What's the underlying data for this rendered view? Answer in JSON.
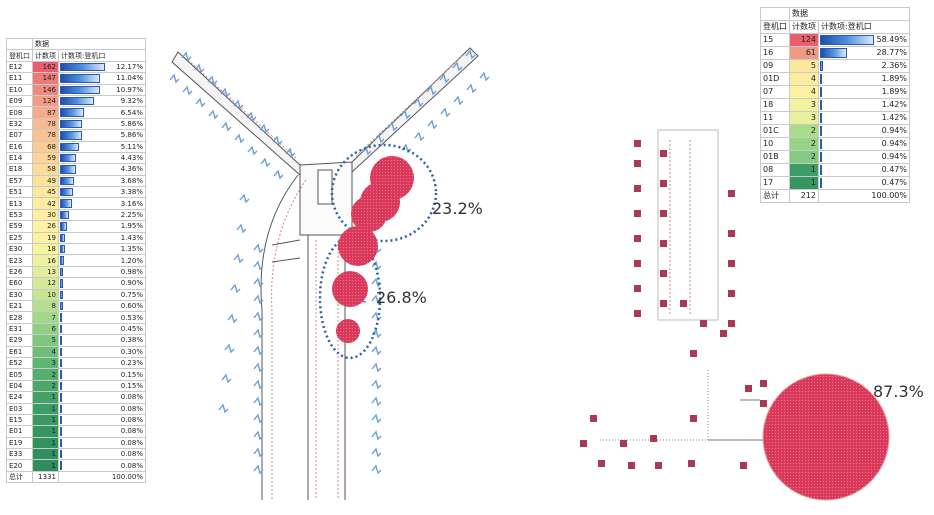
{
  "left_table": {
    "header_top": "数据",
    "col_gate": "登机口",
    "col_count": "计数项",
    "col_pct": "计数项:登机口",
    "rows": [
      {
        "gate": "E12",
        "count": "162",
        "pct": "12.17%",
        "frac": 0.52,
        "color": "#e8606d"
      },
      {
        "gate": "E11",
        "count": "147",
        "pct": "11.04%",
        "frac": 0.47,
        "color": "#ec7a78"
      },
      {
        "gate": "E10",
        "count": "146",
        "pct": "10.97%",
        "frac": 0.47,
        "color": "#ef8a7f"
      },
      {
        "gate": "E09",
        "count": "124",
        "pct": "9.32%",
        "frac": 0.4,
        "color": "#f39b86"
      },
      {
        "gate": "E08",
        "count": "87",
        "pct": "6.54%",
        "frac": 0.28,
        "color": "#f5ab8a"
      },
      {
        "gate": "E32",
        "count": "78",
        "pct": "5.86%",
        "frac": 0.25,
        "color": "#f7b98e"
      },
      {
        "gate": "E07",
        "count": "78",
        "pct": "5.86%",
        "frac": 0.25,
        "color": "#f8c391"
      },
      {
        "gate": "E16",
        "count": "68",
        "pct": "5.11%",
        "frac": 0.22,
        "color": "#f9cc94"
      },
      {
        "gate": "E14",
        "count": "59",
        "pct": "4.43%",
        "frac": 0.19,
        "color": "#fad597"
      },
      {
        "gate": "E18",
        "count": "58",
        "pct": "4.36%",
        "frac": 0.19,
        "color": "#fbdc9a"
      },
      {
        "gate": "E57",
        "count": "49",
        "pct": "3.68%",
        "frac": 0.16,
        "color": "#fbe29c"
      },
      {
        "gate": "E51",
        "count": "45",
        "pct": "3.38%",
        "frac": 0.15,
        "color": "#fce79e"
      },
      {
        "gate": "E13",
        "count": "42",
        "pct": "3.16%",
        "frac": 0.14,
        "color": "#fceca0"
      },
      {
        "gate": "E53",
        "count": "30",
        "pct": "2.25%",
        "frac": 0.1,
        "color": "#fdefa1"
      },
      {
        "gate": "E59",
        "count": "26",
        "pct": "1.95%",
        "frac": 0.08,
        "color": "#fdf1a2"
      },
      {
        "gate": "E25",
        "count": "19",
        "pct": "1.43%",
        "frac": 0.06,
        "color": "#fcf3a2"
      },
      {
        "gate": "E30",
        "count": "18",
        "pct": "1.35%",
        "frac": 0.06,
        "color": "#f7f3a1"
      },
      {
        "gate": "E23",
        "count": "16",
        "pct": "1.20%",
        "frac": 0.05,
        "color": "#eef19f"
      },
      {
        "gate": "E26",
        "count": "13",
        "pct": "0.98%",
        "frac": 0.04,
        "color": "#e2ee9b"
      },
      {
        "gate": "E60",
        "count": "12",
        "pct": "0.90%",
        "frac": 0.04,
        "color": "#d4ea97"
      },
      {
        "gate": "E30",
        "count": "10",
        "pct": "0.75%",
        "frac": 0.03,
        "color": "#c5e593"
      },
      {
        "gate": "E21",
        "count": "8",
        "pct": "0.60%",
        "frac": 0.03,
        "color": "#b4df8e"
      },
      {
        "gate": "E28",
        "count": "7",
        "pct": "0.53%",
        "frac": 0.02,
        "color": "#a2d889"
      },
      {
        "gate": "E31",
        "count": "6",
        "pct": "0.45%",
        "frac": 0.02,
        "color": "#90d084"
      },
      {
        "gate": "E29",
        "count": "5",
        "pct": "0.38%",
        "frac": 0.02,
        "color": "#7ec77e"
      },
      {
        "gate": "E61",
        "count": "4",
        "pct": "0.30%",
        "frac": 0.01,
        "color": "#6dbe79"
      },
      {
        "gate": "E52",
        "count": "3",
        "pct": "0.23%",
        "frac": 0.01,
        "color": "#5fb674"
      },
      {
        "gate": "E05",
        "count": "2",
        "pct": "0.15%",
        "frac": 0.01,
        "color": "#54ae70"
      },
      {
        "gate": "E04",
        "count": "2",
        "pct": "0.15%",
        "frac": 0.01,
        "color": "#4aa86c"
      },
      {
        "gate": "E24",
        "count": "1",
        "pct": "0.08%",
        "frac": 0.005,
        "color": "#43a269"
      },
      {
        "gate": "E03",
        "count": "1",
        "pct": "0.08%",
        "frac": 0.005,
        "color": "#3d9d66"
      },
      {
        "gate": "E15",
        "count": "1",
        "pct": "0.08%",
        "frac": 0.005,
        "color": "#389963"
      },
      {
        "gate": "E01",
        "count": "1",
        "pct": "0.08%",
        "frac": 0.005,
        "color": "#349561"
      },
      {
        "gate": "E19",
        "count": "1",
        "pct": "0.08%",
        "frac": 0.005,
        "color": "#31925f"
      },
      {
        "gate": "E33",
        "count": "1",
        "pct": "0.08%",
        "frac": 0.005,
        "color": "#2f8f5e"
      },
      {
        "gate": "E20",
        "count": "1",
        "pct": "0.08%",
        "frac": 0.005,
        "color": "#2d8d5d"
      }
    ],
    "total_label": "总计",
    "total_count": "1331",
    "total_pct": "100.00%"
  },
  "right_table": {
    "header_top": "数据",
    "col_gate": "登机口",
    "col_count": "计数项",
    "col_pct": "计数项:登机口",
    "rows": [
      {
        "gate": "15",
        "count": "124",
        "pct": "58.49%",
        "frac": 0.6,
        "color": "#e8606d"
      },
      {
        "gate": "16",
        "count": "61",
        "pct": "28.77%",
        "frac": 0.3,
        "color": "#f09a86"
      },
      {
        "gate": "09",
        "count": "5",
        "pct": "2.36%",
        "frac": 0.03,
        "color": "#fce79e"
      },
      {
        "gate": "01D",
        "count": "4",
        "pct": "1.89%",
        "frac": 0.02,
        "color": "#fceca0"
      },
      {
        "gate": "07",
        "count": "4",
        "pct": "1.89%",
        "frac": 0.02,
        "color": "#fdf1a2"
      },
      {
        "gate": "18",
        "count": "3",
        "pct": "1.42%",
        "frac": 0.015,
        "color": "#f2f2a0"
      },
      {
        "gate": "11",
        "count": "3",
        "pct": "1.42%",
        "frac": 0.015,
        "color": "#e8f09d"
      },
      {
        "gate": "01C",
        "count": "2",
        "pct": "0.94%",
        "frac": 0.01,
        "color": "#a8dc8b"
      },
      {
        "gate": "10",
        "count": "2",
        "pct": "0.94%",
        "frac": 0.01,
        "color": "#96d386"
      },
      {
        "gate": "01B",
        "count": "2",
        "pct": "0.94%",
        "frac": 0.01,
        "color": "#84ca80"
      },
      {
        "gate": "08",
        "count": "1",
        "pct": "0.47%",
        "frac": 0.005,
        "color": "#3c9c65"
      },
      {
        "gate": "17",
        "count": "1",
        "pct": "0.47%",
        "frac": 0.005,
        "color": "#359661"
      }
    ],
    "total_label": "总计",
    "total_count": "212",
    "total_pct": "100.00%"
  },
  "annotations": {
    "a1": "23.2%",
    "a2": "26.8%",
    "a3": "87.3%"
  },
  "colors": {
    "bubble": "#d9385a",
    "cluster_outline": "#2a5fa8",
    "terminal_line": "#555555",
    "gate_marker": "#a83a55"
  }
}
